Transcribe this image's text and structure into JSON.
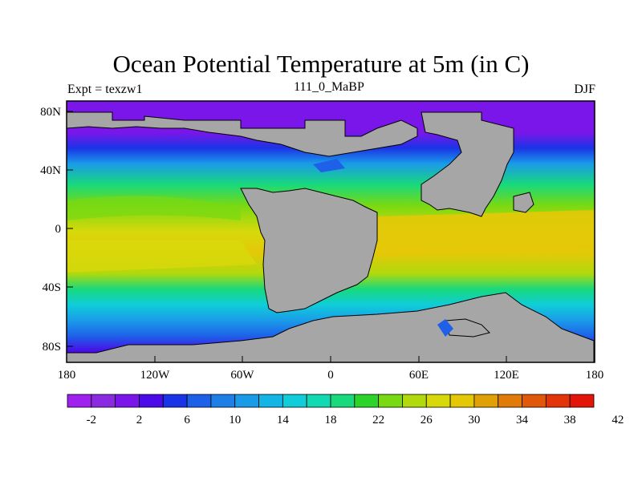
{
  "title": "Ocean Potential Temperature at 5m (in C)",
  "left_subtitle": "Expt = texzw1",
  "center_subtitle": "111_0_MaBP",
  "right_subtitle": "DJF",
  "x_ticks": [
    "180",
    "120W",
    "60W",
    "0",
    "60E",
    "120E",
    "180"
  ],
  "y_ticks": [
    "80N",
    "40N",
    "0",
    "40S",
    "80S"
  ],
  "colorbar_labels": [
    "-2",
    "2",
    "6",
    "10",
    "14",
    "18",
    "22",
    "26",
    "30",
    "34",
    "38",
    "42"
  ],
  "colorbar_colors": [
    "#a020f0",
    "#8a2be2",
    "#7b16ea",
    "#4b0ae8",
    "#1b33e6",
    "#1e60e8",
    "#1e7fe7",
    "#1a9be8",
    "#12b5e4",
    "#10cdd9",
    "#11d9b2",
    "#18d97c",
    "#2bd32a",
    "#79d912",
    "#b1d90d",
    "#d7d90b",
    "#e4c808",
    "#e0a107",
    "#e07a08",
    "#e05809",
    "#e3340a",
    "#e31508"
  ],
  "land_color": "#a6a6a6"
}
